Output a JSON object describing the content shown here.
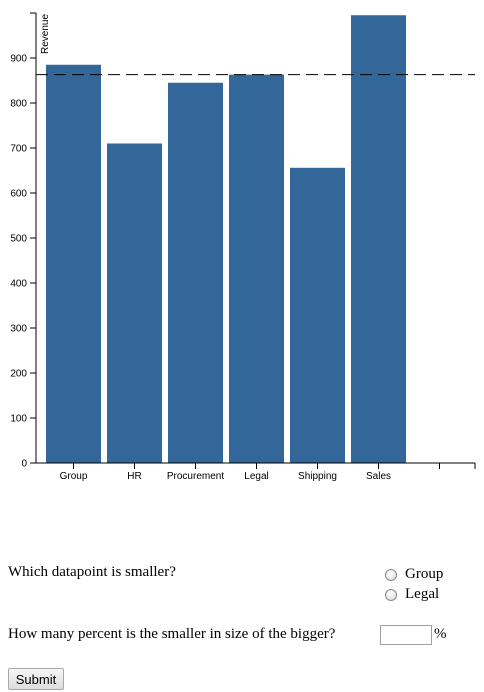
{
  "chart_data": {
    "type": "bar",
    "categories": [
      "Group",
      "HR",
      "Procurement",
      "Legal",
      "Shipping",
      "Sales"
    ],
    "values": [
      885,
      710,
      845,
      863,
      656,
      995
    ],
    "ylabel": "Revenue",
    "xlabel": "",
    "title": "",
    "ylim": [
      0,
      1000
    ],
    "yticks": [
      0,
      100,
      200,
      300,
      400,
      500,
      600,
      700,
      800,
      900
    ],
    "reference_line": 863,
    "bar_color": "#336699",
    "grid": false
  },
  "form": {
    "question1": "Which datapoint is smaller?",
    "options": [
      "Group",
      "Legal"
    ],
    "question2": "How many percent is the smaller in size of the bigger?",
    "percent_value": "",
    "percent_sign": "%",
    "submit_label": "Submit"
  }
}
